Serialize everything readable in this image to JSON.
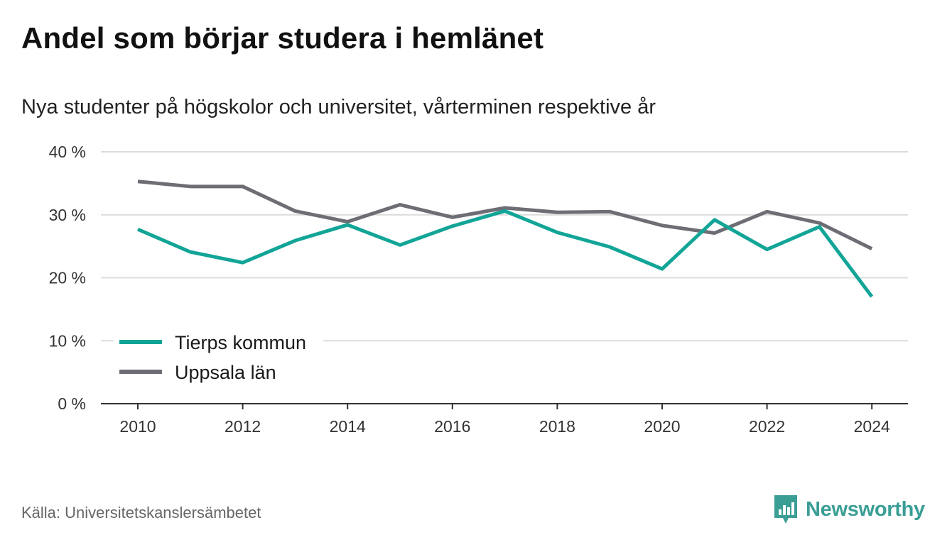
{
  "title": "Andel som börjar studera i hemlänet",
  "subtitle": "Nya studenter på högskolor och universitet, vårterminen respektive år",
  "source": "Källa: Universitetskanslersämbetet",
  "brand": {
    "name": "Newsworthy",
    "icon": "newsworthy-logo-icon",
    "color": "#3a9e95"
  },
  "chart_data": {
    "type": "line",
    "x": [
      2010,
      2011,
      2012,
      2013,
      2014,
      2015,
      2016,
      2017,
      2018,
      2019,
      2020,
      2021,
      2022,
      2023,
      2024
    ],
    "series": [
      {
        "name": "Tierps kommun",
        "color": "#12a597",
        "values": [
          27.7,
          24.1,
          22.4,
          25.9,
          28.4,
          25.2,
          28.2,
          30.6,
          27.2,
          24.9,
          21.4,
          29.2,
          24.5,
          28.1,
          17.0
        ]
      },
      {
        "name": "Uppsala län",
        "color": "#6e6d75",
        "values": [
          35.3,
          34.5,
          34.5,
          30.6,
          28.9,
          31.6,
          29.6,
          31.1,
          30.4,
          30.5,
          28.3,
          27.1,
          30.5,
          28.7,
          24.6
        ]
      }
    ],
    "ylim": [
      0,
      40
    ],
    "yticks": [
      0,
      10,
      20,
      30,
      40
    ],
    "ytick_labels": [
      "0 %",
      "10 %",
      "20 %",
      "30 %",
      "40 %"
    ],
    "xticks": [
      2010,
      2012,
      2014,
      2016,
      2018,
      2020,
      2022,
      2024
    ],
    "xtick_labels": [
      "2010",
      "2012",
      "2014",
      "2016",
      "2018",
      "2020",
      "2022",
      "2024"
    ],
    "xlabel": "",
    "ylabel": "",
    "grid": true,
    "legend_position": "bottom-left"
  }
}
